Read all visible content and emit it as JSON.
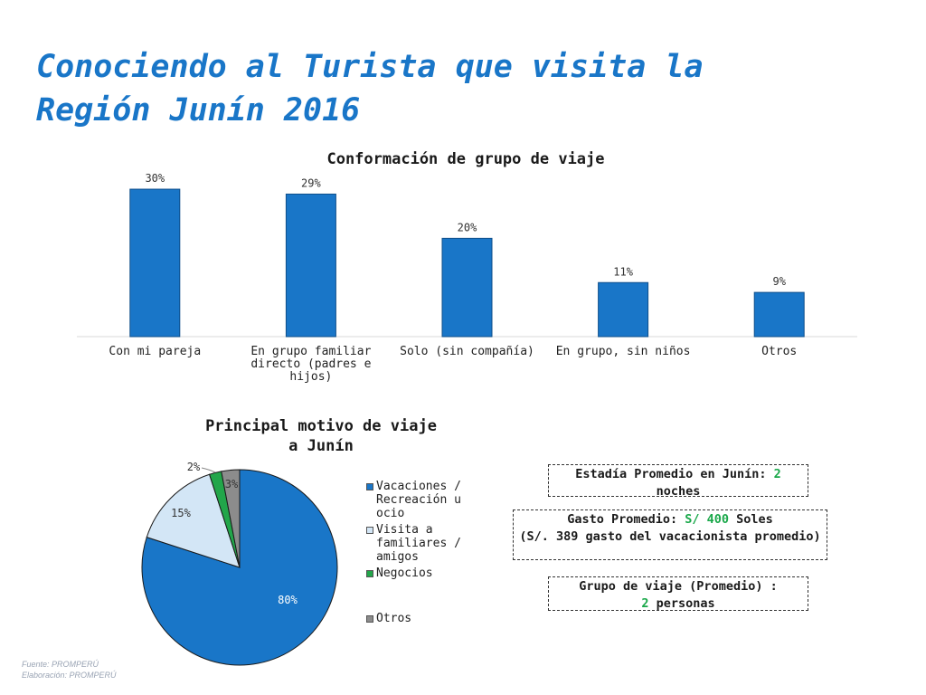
{
  "title": {
    "line1": "Conociendo al Turista que visita la",
    "line2": "Región Junín 2016"
  },
  "bar_chart_title": "Conformación de grupo de viaje",
  "pie_chart_title_line1": "Principal motivo de viaje",
  "pie_chart_title_line2": "a Junín",
  "chart_data": [
    {
      "type": "bar",
      "title": "Conformación de grupo de viaje",
      "categories": [
        "Con mi pareja",
        "En grupo familiar directo (padres e hijos)",
        "Solo (sin compañía)",
        "En grupo, sin niños",
        "Otros"
      ],
      "values": [
        30,
        29,
        20,
        11,
        9
      ],
      "value_labels": [
        "30%",
        "29%",
        "20%",
        "11%",
        "9%"
      ],
      "color": "#1976c8",
      "grid": false
    },
    {
      "type": "pie",
      "title": "Principal motivo de viaje a Junín",
      "categories": [
        "Vacaciones / Recreación u ocio",
        "Visita a familiares / amigos",
        "Negocios",
        "Otros"
      ],
      "values": [
        80,
        15,
        2,
        3
      ],
      "value_labels": [
        "80%",
        "15%",
        "2%",
        "3%"
      ],
      "colors": [
        "#1976c8",
        "#d3e6f6",
        "#22a64a",
        "#8c8c8c"
      ],
      "legend_position": "right"
    }
  ],
  "legend_lines": [
    [
      "Vacaciones /",
      "Recreación u",
      "ocio"
    ],
    [
      "Visita a",
      "familiares /",
      "amigos"
    ],
    [
      "Negocios"
    ],
    [
      "Otros"
    ]
  ],
  "info": {
    "stay": {
      "prefix": "Estadía Promedio en Junín: ",
      "value": "2",
      "suffix": "noches"
    },
    "spend": {
      "prefix": "Gasto Promedio: ",
      "value": "S/ 400",
      "suffix": " Soles",
      "note": "(S/. 389 gasto del vacacionista promedio)"
    },
    "group": {
      "prefix": "Grupo de viaje (Promedio) :",
      "value": "2",
      "suffix": " personas"
    }
  },
  "footer": {
    "source": "Fuente: PROMPERÚ",
    "credit": "Elaboración: PROMPERÚ"
  }
}
